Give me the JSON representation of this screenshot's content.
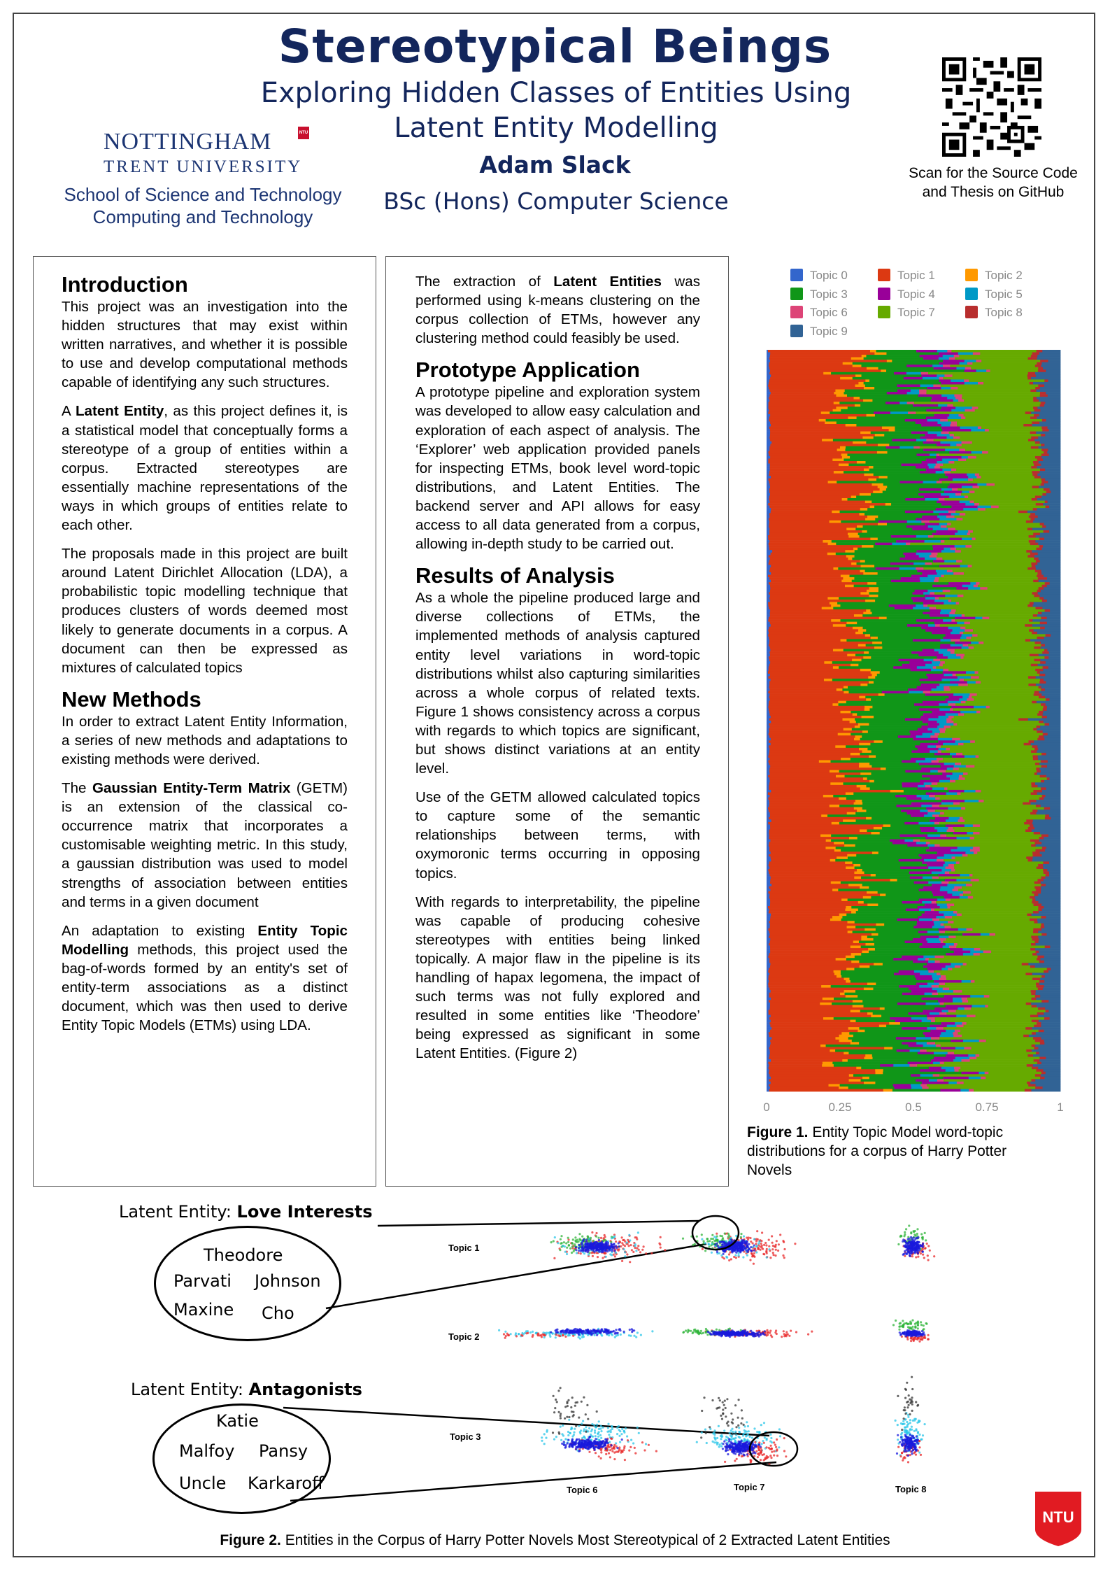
{
  "header": {
    "title": "Stereotypical Beings",
    "subtitle_line1": "Exploring Hidden Classes of Entities Using",
    "subtitle_line2": "Latent Entity Modelling",
    "author": "Adam Slack",
    "degree": "BSc (Hons) Computer Science",
    "university_line1": "NOTTINGHAM",
    "university_line2": "TRENT UNIVERSITY",
    "university_badge": "NTU",
    "school_line1": "School of Science and Technology",
    "school_line2": "Computing and Technology",
    "qr_caption_line1": "Scan for the Source Code",
    "qr_caption_line2": "and Thesis on GitHub"
  },
  "column1": {
    "intro_heading": "Introduction",
    "intro_p1": "This project was an investigation into the hidden structures that may exist within written narratives, and whether it is possible to use and develop computational methods capable of identifying any such structures.",
    "intro_p2_a": "A ",
    "intro_p2_bold": "Latent Entity",
    "intro_p2_b": ", as this project defines it, is a statistical model that conceptually forms a stereotype of a group of entities within a corpus. Extracted stereotypes are essentially machine representations of the ways in which groups of entities relate to each other.",
    "intro_p3": "The proposals made in this project are built around Latent Dirichlet Allocation (LDA), a probabilistic topic modelling technique that produces clusters of words deemed most likely to generate documents in a corpus. A document can then be expressed as mixtures of calculated topics",
    "methods_heading": "New Methods",
    "methods_p1": "In order to extract Latent Entity Information, a series of new methods and adaptations to existing methods were derived.",
    "methods_p2_a": "The ",
    "methods_p2_bold": "Gaussian Entity-Term Matrix",
    "methods_p2_b": " (GETM) is an extension of the classical co-occurrence matrix that incorporates a customisable weighting metric. In this study, a gaussian distribution was used to model strengths of association between entities and terms in a given document",
    "methods_p3_a": "An adaptation to existing ",
    "methods_p3_bold": "Entity Topic Modelling",
    "methods_p3_b": " methods, this project used the bag-of-words formed by an entity's set of entity-term associations as a distinct document, which was then used to derive Entity Topic Models (ETMs) using LDA."
  },
  "column2": {
    "p0_a": "The extraction of ",
    "p0_bold": "Latent Entities",
    "p0_b": " was performed using k-means clustering on the corpus collection of ETMs, however any clustering method could feasibly be used.",
    "proto_heading": "Prototype Application",
    "proto_p1": "A prototype pipeline and exploration system was developed to allow easy calculation and exploration of each aspect of analysis. The ‘Explorer’ web application provided panels for inspecting ETMs, book level word-topic distributions, and Latent Entities. The backend server and API allows for easy access to all data generated from a corpus, allowing in-depth study to be carried out.",
    "results_heading": "Results of Analysis",
    "results_p1": "As a whole the pipeline produced large and diverse collections of ETMs, the implemented methods of analysis captured entity level variations in word-topic distributions  whilst also capturing similarities across a whole corpus of related texts. Figure 1 shows consistency across a corpus with regards to which topics are significant, but shows distinct variations at an entity level.",
    "results_p2": "Use of the GETM allowed calculated topics to capture some of the semantic relationships between terms, with oxymoronic terms occurring in opposing topics.",
    "results_p3": "With regards to interpretability, the pipeline was capable of producing cohesive stereotypes with entities being linked topically. A major flaw in the pipeline is its handling of hapax legomena, the impact of such terms was not fully explored and resulted in some entities like ‘Theodore’  being expressed as significant in some Latent Entities. (Figure 2)"
  },
  "chart_data": {
    "type": "bar",
    "orientation": "horizontal-stacked-100",
    "description_caption_bold": "Figure 1.",
    "caption": " Entity Topic Model word-topic distributions  for a corpus of Harry Potter Novels",
    "legend": [
      "Topic 0",
      "Topic 1",
      "Topic 2",
      "Topic 3",
      "Topic 4",
      "Topic 5",
      "Topic 6",
      "Topic 7",
      "Topic 8",
      "Topic 9"
    ],
    "colors": [
      "#3366cc",
      "#dc3912",
      "#ff9900",
      "#109618",
      "#990099",
      "#0099c6",
      "#dd4477",
      "#66aa00",
      "#b82e2e",
      "#316395"
    ],
    "mean_shares": [
      0.01,
      0.3,
      0.03,
      0.22,
      0.07,
      0.04,
      0.02,
      0.28,
      0.02,
      0.07
    ],
    "xlim": [
      0,
      1
    ],
    "xticks": [
      "0",
      "0.25",
      "0.5",
      "0.75",
      "1"
    ]
  },
  "figure2": {
    "le1_prefix": "Latent Entity: ",
    "le1_name": "Love Interests",
    "le1_entities": [
      "Theodore",
      "Parvati",
      "Johnson",
      "Maxine",
      "Cho"
    ],
    "le2_prefix": "Latent Entity: ",
    "le2_name": "Antagonists",
    "le2_entities": [
      "Katie",
      "Malfoy",
      "Pansy",
      "Uncle",
      "Karkaroff"
    ],
    "row_labels": [
      "Topic 1",
      "Topic 2",
      "Topic 3"
    ],
    "col_labels": [
      "Topic 6",
      "Topic 7",
      "Topic 8"
    ],
    "caption_bold": "Figure 2.",
    "caption": " Entities in the Corpus of Harry Potter Novels Most Stereotypical of 2 Extracted Latent Entities"
  }
}
